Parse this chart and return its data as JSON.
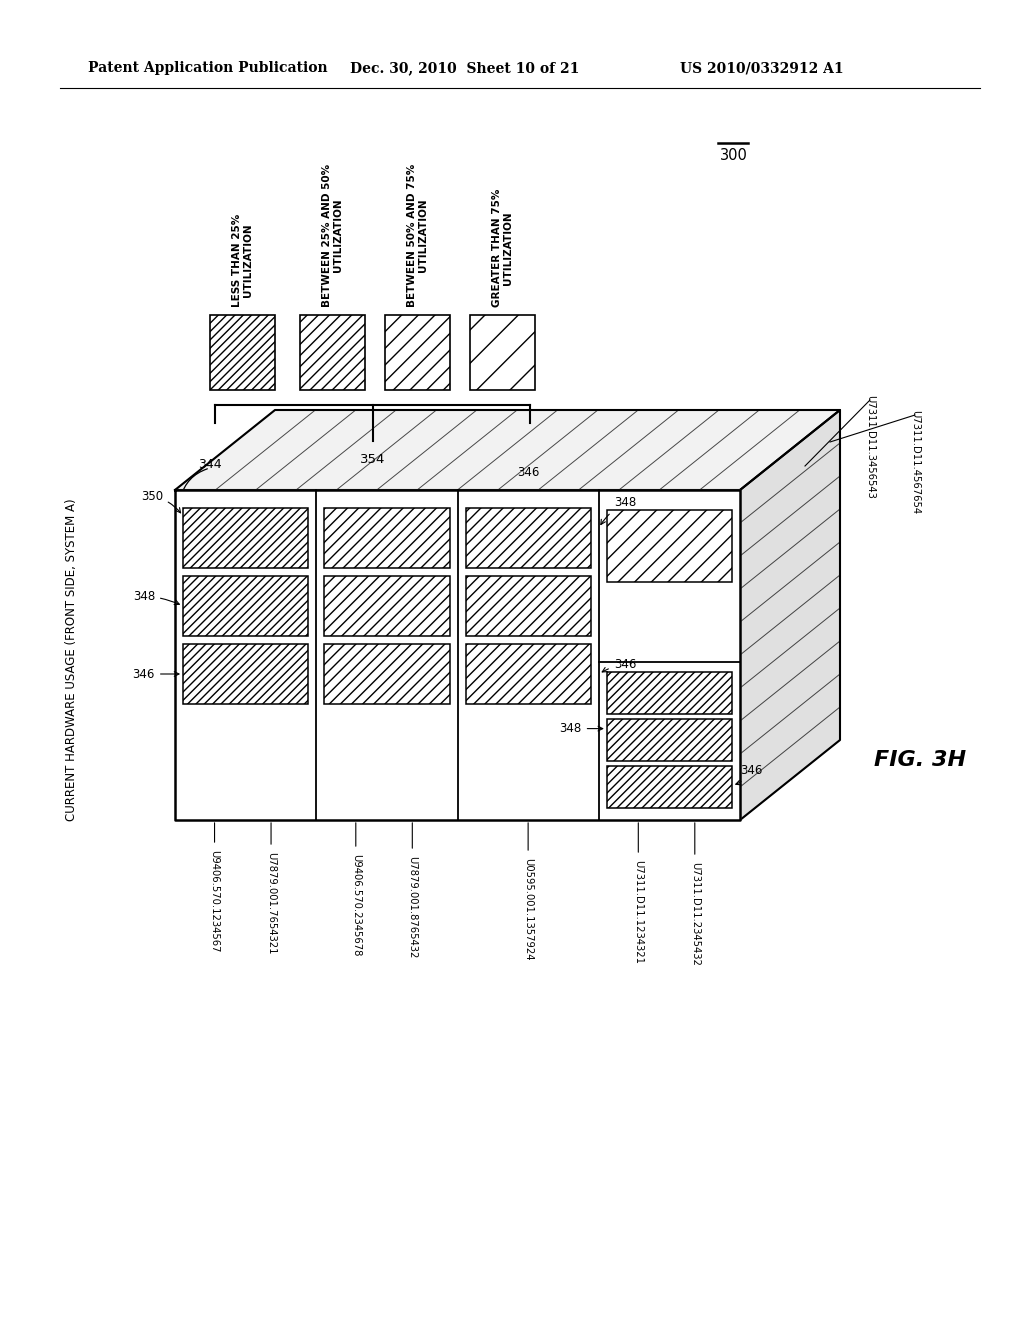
{
  "header_left": "Patent Application Publication",
  "header_mid": "Dec. 30, 2010  Sheet 10 of 21",
  "header_right": "US 2010/0332912 A1",
  "fig_label": "FIG. 3H",
  "ref_300": "300",
  "ref_344": "344",
  "ref_354": "354",
  "legend_labels": [
    "LESS THAN 25%\nUTILIZATION",
    "BETWEEN 25% AND 50%\nUTILIZATION",
    "BETWEEN 50% AND 75%\nUTILIZATION",
    "GREATER THAN 75%\nUTILIZATION"
  ],
  "main_label": "CURRENT HARDWARE USAGE (FRONT SIDE, SYSTEM A)",
  "bottom_labels": [
    "U9406.570.1234567",
    "U7879.001.7654321",
    "U9406.570.2345678",
    "U7879.001.8765432",
    "U0595.001.1357924",
    "U7311.D11.1234321",
    "U7311.D11.2345432"
  ],
  "right_labels": [
    "U7311.D11.3456543",
    "U7311.D11.4567654"
  ],
  "bg": "#ffffff"
}
